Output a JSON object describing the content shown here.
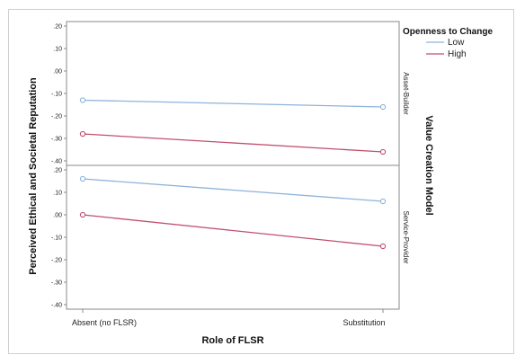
{
  "chart_data": {
    "type": "line",
    "xlabel": "Role of FLSR",
    "ylabel": "Perceived Ethical and Societal Reputation",
    "panel_label": "Value Creation Model",
    "categories": [
      "Absent (no FLSR)",
      "Substitution"
    ],
    "legend": {
      "title": "Openness to Change",
      "placement": "top-right",
      "items": [
        {
          "name": "Low",
          "color": "#8fb3db"
        },
        {
          "name": "High",
          "color": "#c0506e"
        }
      ]
    },
    "ylim": [
      -0.42,
      0.22
    ],
    "yticks": [
      ".20",
      ".10",
      ".00",
      "-.10",
      "-.20",
      "-.30",
      "-.40"
    ],
    "yticks_values": [
      0.2,
      0.1,
      0.0,
      -0.1,
      -0.2,
      -0.3,
      -0.4
    ],
    "panels": [
      {
        "label": "Asset-Builder",
        "series": [
          {
            "name": "Low",
            "color": "#8fb3db",
            "values": [
              -0.13,
              -0.16
            ]
          },
          {
            "name": "High",
            "color": "#c0506e",
            "values": [
              -0.28,
              -0.36
            ]
          }
        ]
      },
      {
        "label": "Service-Provider",
        "series": [
          {
            "name": "Low",
            "color": "#8fb3db",
            "values": [
              0.16,
              0.06
            ]
          },
          {
            "name": "High",
            "color": "#c0506e",
            "values": [
              0.0,
              -0.14
            ]
          }
        ]
      }
    ]
  }
}
